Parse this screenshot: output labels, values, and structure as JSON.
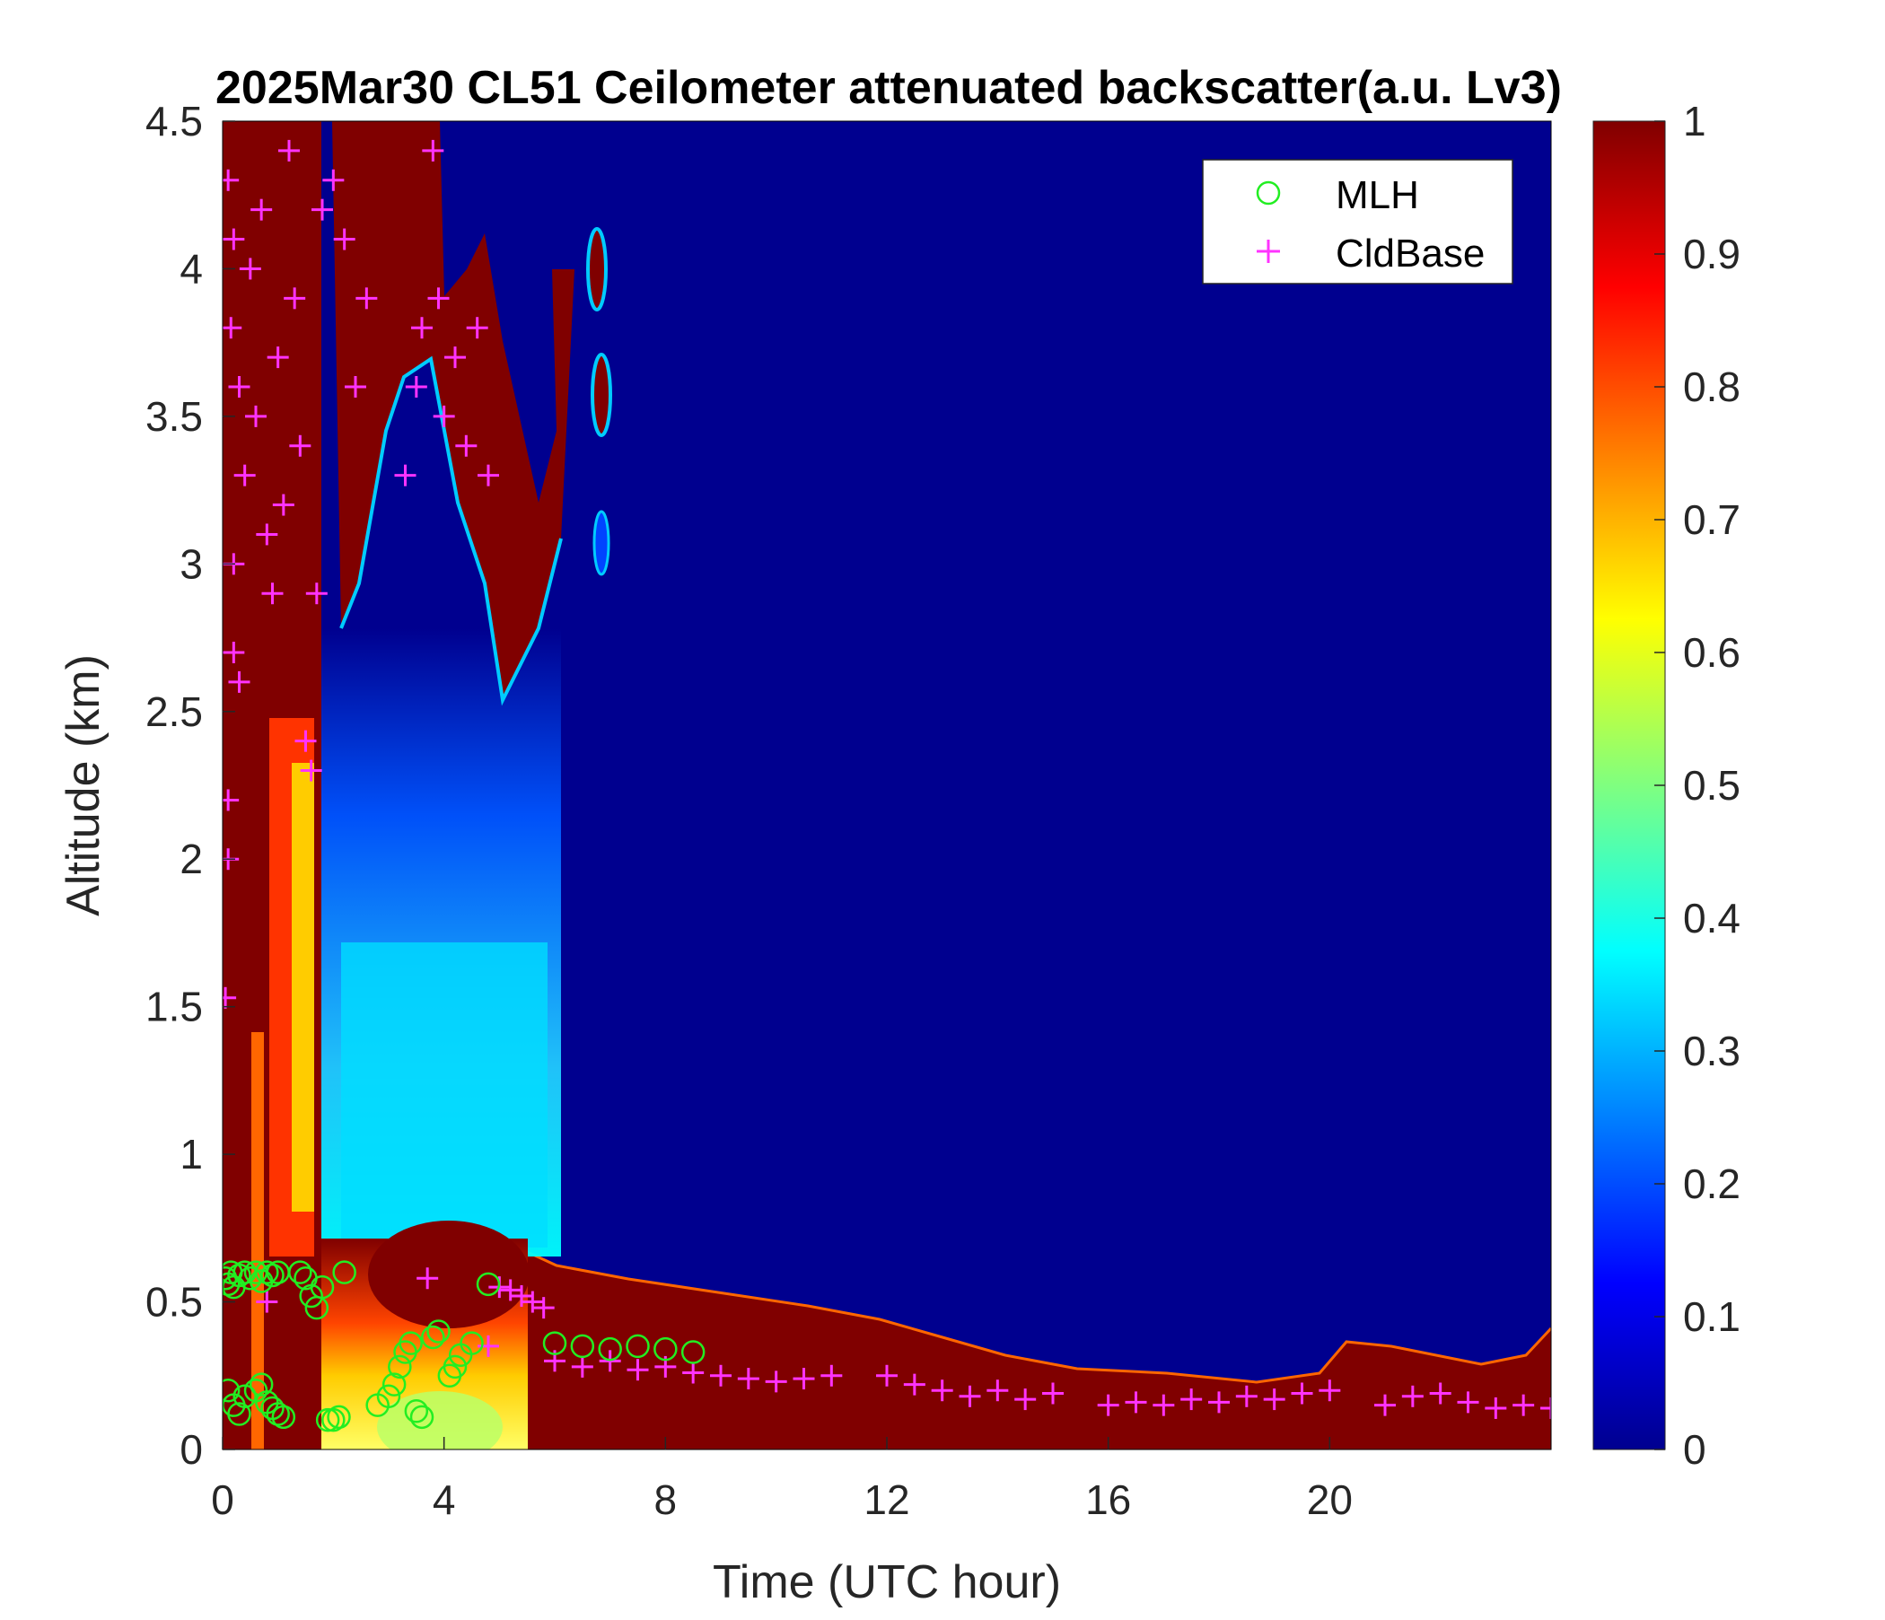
{
  "chart_data": {
    "type": "heatmap",
    "title": "2025Mar30 CL51 Ceilometer attenuated backscatter(a.u. Lv3)",
    "xlabel": "Time (UTC hour)",
    "ylabel": "Altitude (km)",
    "xlim": [
      0,
      24
    ],
    "ylim": [
      0,
      4.5
    ],
    "xticks": [
      "0",
      "4",
      "8",
      "12",
      "16",
      "20"
    ],
    "yticks": [
      "0",
      "0.5",
      "1",
      "1.5",
      "2",
      "2.5",
      "3",
      "3.5",
      "4",
      "4.5"
    ],
    "colorbar": {
      "colormap": "jet",
      "range": [
        0,
        1
      ],
      "ticks": [
        "0",
        "0.1",
        "0.2",
        "0.3",
        "0.4",
        "0.5",
        "0.6",
        "0.7",
        "0.8",
        "0.9",
        "1"
      ]
    },
    "legend": {
      "position": "top-right",
      "entries": [
        {
          "label": "MLH",
          "marker": "circle",
          "color": "#22ee22"
        },
        {
          "label": "CldBase",
          "marker": "plus",
          "color": "#ff33ff"
        }
      ]
    },
    "series": [
      {
        "name": "MLH",
        "x": [
          0.05,
          0.1,
          0.15,
          0.2,
          0.3,
          0.4,
          0.5,
          0.6,
          0.7,
          0.8,
          0.9,
          1.0,
          1.4,
          1.5,
          1.6,
          1.7,
          1.8,
          2.2,
          0.1,
          0.2,
          0.3,
          0.4,
          0.6,
          0.7,
          0.8,
          0.9,
          1.0,
          1.1,
          1.9,
          2.0,
          2.1,
          2.8,
          3.0,
          3.1,
          3.2,
          3.3,
          3.4,
          3.5,
          3.6,
          3.8,
          3.9,
          4.1,
          4.2,
          4.3,
          4.5,
          4.8,
          6.0,
          6.5,
          7.0,
          7.5,
          8.0,
          8.5
        ],
        "y": [
          0.58,
          0.56,
          0.6,
          0.55,
          0.59,
          0.6,
          0.58,
          0.6,
          0.57,
          0.6,
          0.59,
          0.6,
          0.6,
          0.58,
          0.52,
          0.48,
          0.55,
          0.6,
          0.2,
          0.15,
          0.12,
          0.18,
          0.2,
          0.22,
          0.16,
          0.14,
          0.12,
          0.11,
          0.1,
          0.1,
          0.11,
          0.15,
          0.18,
          0.22,
          0.28,
          0.33,
          0.36,
          0.13,
          0.11,
          0.38,
          0.4,
          0.25,
          0.28,
          0.32,
          0.36,
          0.56,
          0.36,
          0.35,
          0.34,
          0.35,
          0.34,
          0.33
        ]
      },
      {
        "name": "CldBase",
        "x": [
          0.05,
          0.1,
          0.1,
          0.15,
          0.2,
          0.2,
          0.3,
          0.4,
          0.5,
          0.6,
          0.7,
          0.8,
          0.9,
          1.0,
          1.1,
          1.2,
          1.3,
          1.4,
          1.5,
          1.6,
          1.7,
          1.8,
          2.0,
          2.2,
          2.4,
          2.6,
          3.3,
          3.5,
          3.6,
          3.8,
          3.9,
          4.0,
          4.2,
          4.4,
          4.6,
          4.8,
          5.0,
          5.2,
          5.4,
          5.6,
          5.8,
          6.0,
          6.5,
          7.0,
          7.5,
          8.0,
          8.5,
          9.0,
          9.5,
          10.0,
          10.5,
          11.0,
          12.0,
          12.5,
          13.0,
          13.5,
          14.0,
          14.5,
          15.0,
          16.0,
          16.5,
          17.0,
          17.5,
          18.0,
          18.5,
          19.0,
          19.5,
          20.0,
          21.0,
          21.5,
          22.0,
          22.5,
          23.0,
          23.5,
          24.0,
          0.1,
          0.2,
          0.3,
          0.8,
          3.7,
          4.8
        ],
        "y": [
          1.53,
          2.2,
          2.0,
          3.8,
          4.1,
          2.7,
          3.6,
          3.3,
          4.0,
          3.5,
          4.2,
          3.1,
          2.9,
          3.7,
          3.2,
          4.4,
          3.9,
          3.4,
          2.4,
          2.3,
          2.9,
          4.2,
          4.3,
          4.1,
          3.6,
          3.9,
          3.3,
          3.6,
          3.8,
          4.4,
          3.9,
          3.5,
          3.7,
          3.4,
          3.8,
          3.3,
          0.55,
          0.54,
          0.52,
          0.5,
          0.48,
          0.3,
          0.28,
          0.3,
          0.27,
          0.28,
          0.26,
          0.25,
          0.24,
          0.23,
          0.24,
          0.25,
          0.25,
          0.22,
          0.2,
          0.18,
          0.2,
          0.17,
          0.19,
          0.15,
          0.16,
          0.15,
          0.17,
          0.16,
          0.18,
          0.17,
          0.19,
          0.2,
          0.15,
          0.18,
          0.19,
          0.16,
          0.14,
          0.15,
          0.14,
          4.3,
          3.0,
          2.6,
          0.5,
          0.58,
          0.35
        ]
      }
    ]
  }
}
